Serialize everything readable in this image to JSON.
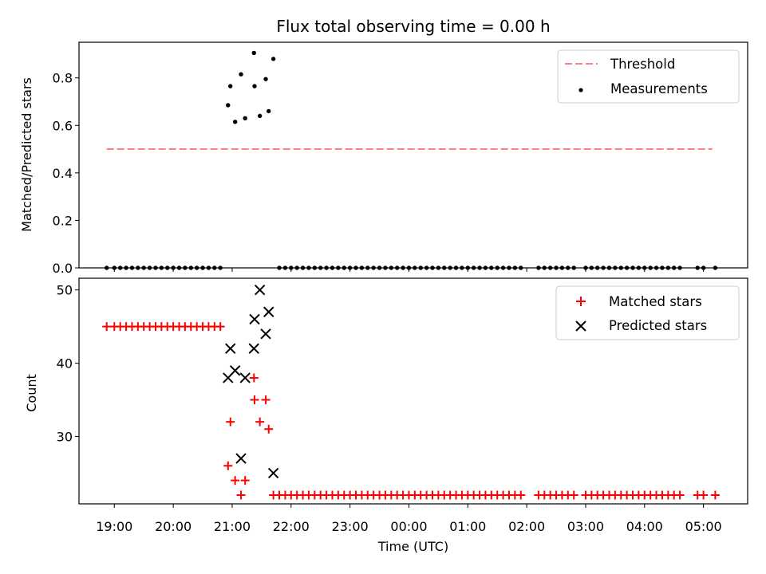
{
  "chart_data": {
    "title": "Flux total observing time = 0.00 h",
    "xlabel": "Time (UTC)",
    "x_ticks": [
      "19:00",
      "20:00",
      "21:00",
      "22:00",
      "23:00",
      "00:00",
      "01:00",
      "02:00",
      "03:00",
      "04:00",
      "05:00"
    ],
    "x_range_hours": [
      18.4,
      29.75
    ],
    "panels": [
      {
        "type": "scatter",
        "ylabel": "Matched/Predicted stars",
        "ylim": [
          0,
          0.95
        ],
        "yticks": [
          "0.0",
          "0.2",
          "0.4",
          "0.6",
          "0.8"
        ],
        "ytick_values": [
          0,
          0.2,
          0.4,
          0.6,
          0.8
        ],
        "legend_position": "top-right",
        "threshold": {
          "name": "Threshold",
          "value": 0.5,
          "x_start": 18.87,
          "x_end": 29.15,
          "color": "#ff7f7f"
        },
        "measurements_name": "Measurements",
        "measurements_color": "#000000",
        "measurements_nonzero": [
          [
            20.93,
            0.685
          ],
          [
            20.97,
            0.765
          ],
          [
            21.05,
            0.615
          ],
          [
            21.15,
            0.815
          ],
          [
            21.22,
            0.63
          ],
          [
            21.37,
            0.905
          ],
          [
            21.38,
            0.765
          ],
          [
            21.47,
            0.64
          ],
          [
            21.57,
            0.795
          ],
          [
            21.62,
            0.66
          ],
          [
            21.7,
            0.88
          ]
        ],
        "measurements_zero_hours": [
          18.87,
          19.0,
          19.1,
          19.2,
          19.3,
          19.4,
          19.5,
          19.6,
          19.7,
          19.8,
          19.9,
          20.0,
          20.1,
          20.2,
          20.3,
          20.4,
          20.5,
          20.6,
          20.7,
          20.8,
          21.8,
          21.9,
          22.0,
          22.1,
          22.2,
          22.3,
          22.4,
          22.5,
          22.6,
          22.7,
          22.8,
          22.9,
          23.0,
          23.1,
          23.2,
          23.3,
          23.4,
          23.5,
          23.6,
          23.7,
          23.8,
          23.9,
          24.0,
          24.1,
          24.2,
          24.3,
          24.4,
          24.5,
          24.6,
          24.7,
          24.8,
          24.9,
          25.0,
          25.1,
          25.2,
          25.3,
          25.4,
          25.5,
          25.6,
          25.7,
          25.8,
          25.9,
          26.2,
          26.3,
          26.4,
          26.5,
          26.6,
          26.7,
          26.8,
          27.0,
          27.1,
          27.2,
          27.3,
          27.4,
          27.5,
          27.6,
          27.7,
          27.8,
          27.9,
          28.0,
          28.1,
          28.2,
          28.3,
          28.4,
          28.5,
          28.6,
          28.9,
          29.0,
          29.2
        ]
      },
      {
        "type": "scatter",
        "ylabel": "Count",
        "ylim": [
          20.8,
          51.6
        ],
        "yticks": [
          "30",
          "40",
          "50"
        ],
        "ytick_values": [
          30,
          40,
          50
        ],
        "legend_position": "top-right",
        "matched_name": "Matched stars",
        "matched_color": "#ff0000",
        "predicted_name": "Predicted stars",
        "predicted_color": "#000000",
        "matched_45_hours": [
          18.87,
          19.0,
          19.1,
          19.2,
          19.3,
          19.4,
          19.5,
          19.6,
          19.7,
          19.8,
          19.9,
          20.0,
          20.1,
          20.2,
          20.3,
          20.4,
          20.5,
          20.6,
          20.7,
          20.8
        ],
        "matched_other": [
          [
            20.93,
            26
          ],
          [
            20.97,
            32
          ],
          [
            21.05,
            24
          ],
          [
            21.15,
            22
          ],
          [
            21.22,
            24
          ],
          [
            21.37,
            38
          ],
          [
            21.38,
            35
          ],
          [
            21.47,
            32
          ],
          [
            21.57,
            35
          ],
          [
            21.62,
            31
          ],
          [
            21.7,
            22
          ]
        ],
        "matched_22_hours": [
          21.8,
          21.9,
          22.0,
          22.1,
          22.2,
          22.3,
          22.4,
          22.5,
          22.6,
          22.7,
          22.8,
          22.9,
          23.0,
          23.1,
          23.2,
          23.3,
          23.4,
          23.5,
          23.6,
          23.7,
          23.8,
          23.9,
          24.0,
          24.1,
          24.2,
          24.3,
          24.4,
          24.5,
          24.6,
          24.7,
          24.8,
          24.9,
          25.0,
          25.1,
          25.2,
          25.3,
          25.4,
          25.5,
          25.6,
          25.7,
          25.8,
          25.9,
          26.2,
          26.3,
          26.4,
          26.5,
          26.6,
          26.7,
          26.8,
          27.0,
          27.1,
          27.2,
          27.3,
          27.4,
          27.5,
          27.6,
          27.7,
          27.8,
          27.9,
          28.0,
          28.1,
          28.2,
          28.3,
          28.4,
          28.5,
          28.6,
          28.9,
          29.0,
          29.2
        ],
        "predicted": [
          [
            20.93,
            38
          ],
          [
            20.97,
            42
          ],
          [
            21.05,
            39
          ],
          [
            21.15,
            27
          ],
          [
            21.22,
            38
          ],
          [
            21.37,
            42
          ],
          [
            21.38,
            46
          ],
          [
            21.47,
            50
          ],
          [
            21.57,
            44
          ],
          [
            21.62,
            47
          ],
          [
            21.7,
            25
          ]
        ]
      }
    ]
  }
}
